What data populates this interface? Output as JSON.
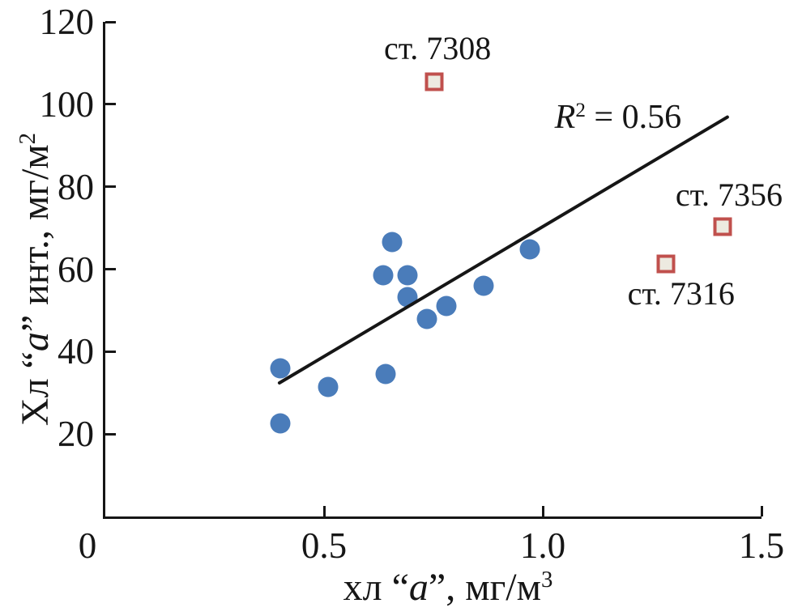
{
  "figure": {
    "background": "#ffffff",
    "text_color": "#161616"
  },
  "chart_data": {
    "type": "scatter",
    "grid": false,
    "legend": false,
    "x_axis": {
      "min": 0,
      "max": 1.5,
      "title_parts": [
        {
          "t": "хл “"
        },
        {
          "t": "a",
          "i": true
        },
        {
          "t": "”, мг/м"
        },
        {
          "t": "3",
          "sup": true
        }
      ],
      "ticks": [
        {
          "label": "0",
          "value": 0,
          "tick": false,
          "dx": -22
        },
        {
          "label": "0.5",
          "value": 0.5
        },
        {
          "label": "1.0",
          "value": 1.0
        },
        {
          "label": "1.5",
          "value": 1.5
        }
      ]
    },
    "y_axis": {
      "min": 0,
      "max": 120,
      "title_parts": [
        {
          "t": "Хл “"
        },
        {
          "t": "a",
          "i": true
        },
        {
          "t": "” инт., мг/м"
        },
        {
          "t": "2",
          "sup": true
        }
      ],
      "ticks": [
        {
          "label": "20",
          "value": 20
        },
        {
          "label": "40",
          "value": 40
        },
        {
          "label": "60",
          "value": 60
        },
        {
          "label": "80",
          "value": 80
        },
        {
          "label": "100",
          "value": 100
        },
        {
          "label": "120",
          "value": 120
        }
      ]
    },
    "series": [
      {
        "id": "main-points",
        "marker": "circle",
        "color": "#4a7cba",
        "marker_size": 25,
        "points": [
          [
            0.4,
            36
          ],
          [
            0.4,
            22.5
          ],
          [
            0.51,
            31.5
          ],
          [
            0.64,
            34.5
          ],
          [
            0.635,
            58.5
          ],
          [
            0.655,
            66.6
          ],
          [
            0.69,
            58.6
          ],
          [
            0.69,
            53.2
          ],
          [
            0.735,
            48
          ],
          [
            0.78,
            51
          ],
          [
            0.865,
            56
          ],
          [
            0.97,
            64.8
          ]
        ]
      },
      {
        "id": "outlier-stations",
        "marker": "square",
        "stroke_color": "#c0504d",
        "fill_color": "#edeae0",
        "marker_size": 23,
        "points": [
          {
            "x": 0.752,
            "y": 105.5,
            "label": "ст. 7308",
            "label_dx": 4,
            "label_dy": -41
          },
          {
            "x": 1.411,
            "y": 70.3,
            "label": "ст. 7356",
            "label_dx": 8,
            "label_dy": -39
          },
          {
            "x": 1.281,
            "y": 61.3,
            "label": "ст. 7316",
            "label_dx": 19,
            "label_dy": 37
          }
        ]
      }
    ],
    "trendline": {
      "x1": 0.398,
      "y1": 32.4,
      "x2": 1.422,
      "y2": 96.9,
      "color": "#161616",
      "width": 4
    },
    "annotations": [
      {
        "id": "r-squared",
        "parts": [
          {
            "t": "R",
            "i": true
          },
          {
            "t": "2",
            "sup": true
          },
          {
            "t": " = 0.56"
          }
        ],
        "x": 1.172,
        "y": 96.8
      }
    ]
  }
}
